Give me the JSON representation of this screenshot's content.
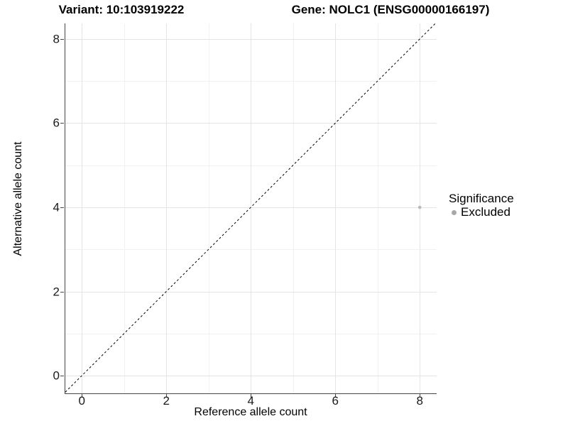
{
  "header": {
    "variant_title": "Variant: 10:103919222",
    "gene_title": "Gene: NOLC1 (ENSG00000166197)"
  },
  "legend": {
    "title": "Significance",
    "items": [
      {
        "label": "Excluded",
        "color": "#a8a8a8"
      }
    ]
  },
  "chart_data": {
    "type": "scatter",
    "title_left": "Variant: 10:103919222",
    "title_right": "Gene: NOLC1 (ENSG00000166197)",
    "xlabel": "Reference allele count",
    "ylabel": "Alternative allele count",
    "xticks": [
      0,
      2,
      4,
      6,
      8
    ],
    "yticks": [
      0,
      2,
      4,
      6,
      8
    ],
    "x_minor_breaks": [
      1,
      3,
      5,
      7
    ],
    "y_minor_breaks": [
      1,
      3,
      5,
      7
    ],
    "xlim": [
      -0.39,
      8.4
    ],
    "ylim": [
      -0.42,
      8.37
    ],
    "grid": true,
    "legend_position": "right-middle",
    "series": [
      {
        "name": "Excluded",
        "points": [
          {
            "x": 8,
            "y": 4
          }
        ]
      }
    ],
    "reference_line": {
      "slope": 1,
      "intercept": 0,
      "style": "dashed",
      "color": "#000000"
    }
  },
  "colors": {
    "background": "#ffffff",
    "axis_line": "#474747",
    "tick_mark": "#474747",
    "tick_label": "#1a1a1a",
    "grid_major": "#e4e4e4",
    "grid_minor": "#f1f1f1",
    "point": "#b9b9b9",
    "identity_line": "#000000"
  }
}
